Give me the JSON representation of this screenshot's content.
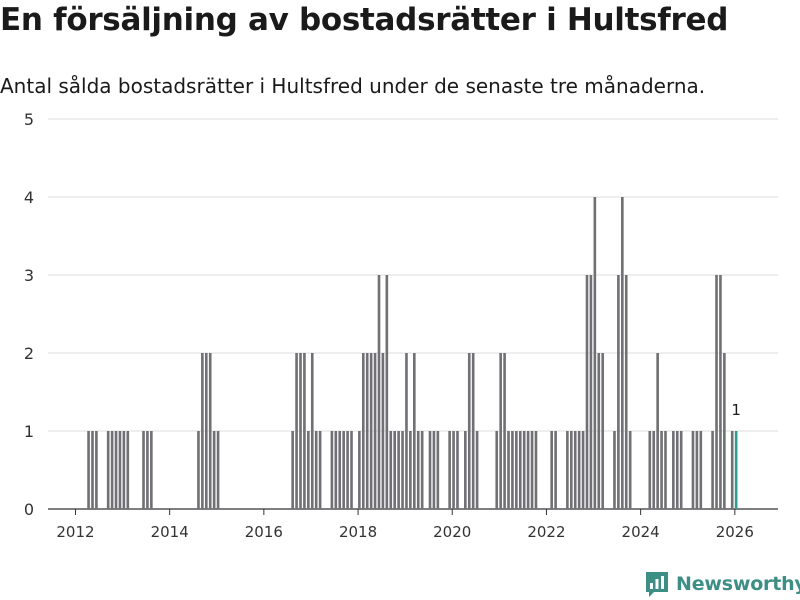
{
  "header": {
    "title": "En försäljning av bostadsrätter i Hultsfred",
    "subtitle": "Antal sålda bostadsrätter i Hultsfred under de senaste tre månaderna."
  },
  "brand": {
    "name": "Newsworthy"
  },
  "colors": {
    "bar": "#717074",
    "highlight": "#2a9d8f",
    "grid": "#dddddd",
    "brand": "#3d8f86"
  },
  "chart_data": {
    "type": "bar",
    "title": "En försäljning av bostadsrätter i Hultsfred",
    "subtitle": "Antal sålda bostadsrätter i Hultsfred under de senaste tre månaderna.",
    "xlabel": "",
    "ylabel": "",
    "x_unit": "month",
    "xlim": [
      "2011-06",
      "2026-12"
    ],
    "ylim": [
      0,
      5
    ],
    "yticks": [
      0,
      1,
      2,
      3,
      4,
      5
    ],
    "xticks": [
      "2012",
      "2014",
      "2016",
      "2018",
      "2020",
      "2022",
      "2024",
      "2026"
    ],
    "grid": true,
    "highlight_label": "1",
    "series": [
      {
        "values": [
          [
            "2012-04",
            1
          ],
          [
            "2012-05",
            1
          ],
          [
            "2012-06",
            1
          ],
          [
            "2012-09",
            1
          ],
          [
            "2012-10",
            1
          ],
          [
            "2012-11",
            1
          ],
          [
            "2012-12",
            1
          ],
          [
            "2013-01",
            1
          ],
          [
            "2013-02",
            1
          ],
          [
            "2013-06",
            1
          ],
          [
            "2013-07",
            1
          ],
          [
            "2013-08",
            1
          ],
          [
            "2014-08",
            1
          ],
          [
            "2014-09",
            2
          ],
          [
            "2014-10",
            2
          ],
          [
            "2014-11",
            2
          ],
          [
            "2014-12",
            1
          ],
          [
            "2015-01",
            1
          ],
          [
            "2016-08",
            1
          ],
          [
            "2016-09",
            2
          ],
          [
            "2016-10",
            2
          ],
          [
            "2016-11",
            2
          ],
          [
            "2016-12",
            1
          ],
          [
            "2017-01",
            2
          ],
          [
            "2017-02",
            1
          ],
          [
            "2017-03",
            1
          ],
          [
            "2017-06",
            1
          ],
          [
            "2017-07",
            1
          ],
          [
            "2017-08",
            1
          ],
          [
            "2017-09",
            1
          ],
          [
            "2017-10",
            1
          ],
          [
            "2017-11",
            1
          ],
          [
            "2018-01",
            1
          ],
          [
            "2018-02",
            2
          ],
          [
            "2018-03",
            2
          ],
          [
            "2018-04",
            2
          ],
          [
            "2018-05",
            2
          ],
          [
            "2018-06",
            3
          ],
          [
            "2018-07",
            2
          ],
          [
            "2018-08",
            3
          ],
          [
            "2018-09",
            1
          ],
          [
            "2018-10",
            1
          ],
          [
            "2018-11",
            1
          ],
          [
            "2018-12",
            1
          ],
          [
            "2019-01",
            2
          ],
          [
            "2019-02",
            1
          ],
          [
            "2019-03",
            2
          ],
          [
            "2019-04",
            1
          ],
          [
            "2019-05",
            1
          ],
          [
            "2019-07",
            1
          ],
          [
            "2019-08",
            1
          ],
          [
            "2019-09",
            1
          ],
          [
            "2019-12",
            1
          ],
          [
            "2020-01",
            1
          ],
          [
            "2020-02",
            1
          ],
          [
            "2020-04",
            1
          ],
          [
            "2020-05",
            2
          ],
          [
            "2020-06",
            2
          ],
          [
            "2020-07",
            1
          ],
          [
            "2020-12",
            1
          ],
          [
            "2021-01",
            2
          ],
          [
            "2021-02",
            2
          ],
          [
            "2021-03",
            1
          ],
          [
            "2021-04",
            1
          ],
          [
            "2021-05",
            1
          ],
          [
            "2021-06",
            1
          ],
          [
            "2021-07",
            1
          ],
          [
            "2021-08",
            1
          ],
          [
            "2021-09",
            1
          ],
          [
            "2021-10",
            1
          ],
          [
            "2022-02",
            1
          ],
          [
            "2022-03",
            1
          ],
          [
            "2022-06",
            1
          ],
          [
            "2022-07",
            1
          ],
          [
            "2022-08",
            1
          ],
          [
            "2022-09",
            1
          ],
          [
            "2022-10",
            1
          ],
          [
            "2022-11",
            3
          ],
          [
            "2022-12",
            3
          ],
          [
            "2023-01",
            4
          ],
          [
            "2023-02",
            2
          ],
          [
            "2023-03",
            2
          ],
          [
            "2023-06",
            1
          ],
          [
            "2023-07",
            3
          ],
          [
            "2023-08",
            4
          ],
          [
            "2023-09",
            3
          ],
          [
            "2023-10",
            1
          ],
          [
            "2024-03",
            1
          ],
          [
            "2024-04",
            1
          ],
          [
            "2024-05",
            2
          ],
          [
            "2024-06",
            1
          ],
          [
            "2024-07",
            1
          ],
          [
            "2024-09",
            1
          ],
          [
            "2024-10",
            1
          ],
          [
            "2024-11",
            1
          ],
          [
            "2025-02",
            1
          ],
          [
            "2025-03",
            1
          ],
          [
            "2025-04",
            1
          ],
          [
            "2025-07",
            1
          ],
          [
            "2025-08",
            3
          ],
          [
            "2025-09",
            3
          ],
          [
            "2025-10",
            2
          ],
          [
            "2025-12",
            1
          ]
        ]
      }
    ],
    "highlight": {
      "x": "2026-01",
      "value": 1
    }
  }
}
